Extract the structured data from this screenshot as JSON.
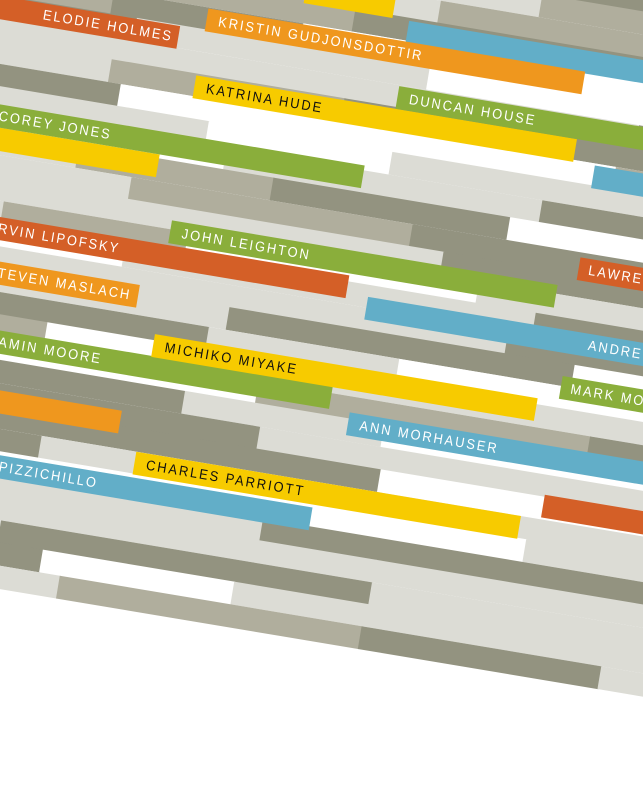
{
  "palette": {
    "orange_red": "#d45f27",
    "orange": "#ef971e",
    "yellow": "#f7cb00",
    "green": "#8aae3b",
    "blue": "#62aec8",
    "gray_light": "#dcdcd5",
    "gray_mid": "#b0ae9d",
    "gray_dark": "#939380",
    "white": "#ffffff"
  },
  "names": [
    {
      "label": "ELODIE HOLMES",
      "color": "orange_red"
    },
    {
      "label": "KRISTIN GUDJONSDOTTIR",
      "color": "orange"
    },
    {
      "label": "KATRINA HUDE",
      "color": "yellow"
    },
    {
      "label": "DUNCAN HOUSE",
      "color": "green"
    },
    {
      "label": "COREY JONES",
      "color": "green"
    },
    {
      "label": "RVIN LIPOFSKY",
      "color": "orange_red"
    },
    {
      "label": "JOHN LEIGHTON",
      "color": "green"
    },
    {
      "label": "LAWRE",
      "color": "orange_red"
    },
    {
      "label": "TEVEN MASLACH",
      "color": "orange"
    },
    {
      "label": "ANDRE",
      "color": "blue"
    },
    {
      "label": "AMIN MOORE",
      "color": "green"
    },
    {
      "label": "MICHIKO MIYAKE",
      "color": "yellow"
    },
    {
      "label": "MARK MO",
      "color": "green"
    },
    {
      "label": "ANN MORHAUSER",
      "color": "blue"
    },
    {
      "label": "PIZZICHILLO",
      "color": "blue"
    },
    {
      "label": "CHARLES PARRIOTT",
      "color": "yellow"
    }
  ]
}
